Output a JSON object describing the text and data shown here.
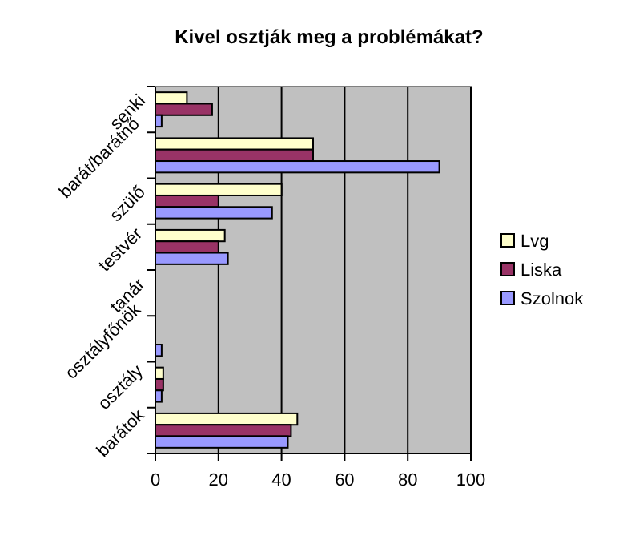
{
  "chart_data": {
    "type": "bar",
    "orientation": "horizontal",
    "title": "Kivel osztják meg a problémákat?",
    "categories": [
      "senki",
      "barát/barátnő",
      "szülő",
      "testvér",
      "tanár",
      "osztályfőnök",
      "osztály",
      "barátok"
    ],
    "series": [
      {
        "name": "Lvg",
        "color": "#ffffcc",
        "values": [
          10,
          50,
          40,
          22,
          0,
          0,
          2.5,
          45
        ]
      },
      {
        "name": "Liska",
        "color": "#993366",
        "values": [
          18,
          50,
          20,
          20,
          0,
          0,
          2.5,
          43
        ]
      },
      {
        "name": "Szolnok",
        "color": "#9999ff",
        "values": [
          2,
          90,
          37,
          23,
          0,
          2,
          2,
          42
        ]
      }
    ],
    "xlim": [
      0,
      100
    ],
    "xticks": [
      0,
      20,
      40,
      60,
      80,
      100
    ],
    "grid": "x",
    "legend": "right"
  }
}
